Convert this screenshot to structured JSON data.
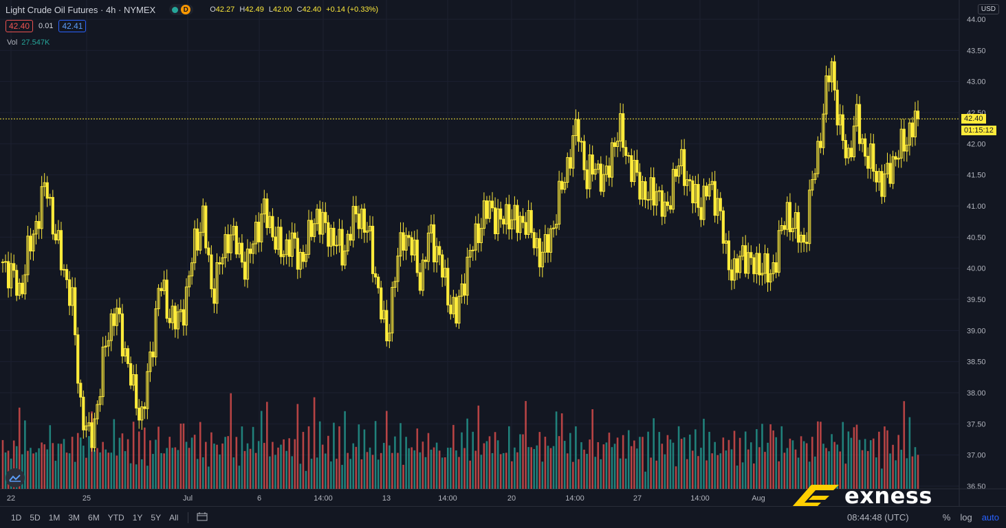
{
  "header": {
    "title": "Light Crude Oil Futures · 4h · NYMEX",
    "badge_d": "D",
    "ohlc": {
      "o_label": "O",
      "o": "42.27",
      "h_label": "H",
      "h": "42.49",
      "l_label": "L",
      "l": "42.00",
      "c_label": "C",
      "c": "42.40",
      "change": "+0.14 (+0.33%)"
    },
    "sell_price": "42.40",
    "spread": "0.01",
    "buy_price": "42.41",
    "volume_label": "Vol",
    "volume_value": "27.547K",
    "currency": "USD"
  },
  "last_price_tag": "42.40",
  "countdown_tag": "01:15:12",
  "toolbar": {
    "timeframes": [
      "1D",
      "5D",
      "1M",
      "3M",
      "6M",
      "YTD",
      "1Y",
      "5Y",
      "All"
    ],
    "clock": "08:44:48 (UTC)",
    "percent": "%",
    "log": "log",
    "auto": "auto"
  },
  "brand": {
    "name": "exness"
  },
  "colors": {
    "up": "#26a69a",
    "down": "#ef5350",
    "candle": "#ffeb3b",
    "background": "#131722"
  },
  "chart_data": {
    "type": "candlestick",
    "title": "Light Crude Oil Futures · 4h · NYMEX",
    "y_axis_ticks": [
      "44.00",
      "43.50",
      "43.00",
      "42.50",
      "42.00",
      "41.50",
      "41.00",
      "40.50",
      "40.00",
      "39.50",
      "39.00",
      "38.50",
      "38.00",
      "37.50",
      "37.00",
      "36.50"
    ],
    "ylim": [
      36.5,
      44.0
    ],
    "x_axis_ticks": [
      "22",
      "25",
      "Jul",
      "6",
      "14:00",
      "13",
      "14:00",
      "20",
      "14:00",
      "27",
      "14:00",
      "Aug"
    ],
    "last_price": 42.4,
    "path": [
      40.1,
      39.9,
      39.6,
      40.3,
      40.8,
      41.4,
      40.5,
      40.0,
      39.4,
      37.7,
      37.2,
      37.9,
      39.0,
      39.3,
      38.7,
      38.0,
      37.6,
      38.6,
      39.8,
      39.3,
      39.1,
      39.5,
      40.4,
      40.8,
      39.6,
      40.1,
      40.6,
      40.3,
      40.0,
      40.6,
      40.9,
      40.6,
      40.2,
      40.5,
      40.1,
      40.4,
      40.9,
      40.6,
      40.5,
      40.2,
      40.7,
      40.9,
      40.5,
      39.7,
      38.8,
      39.9,
      40.6,
      40.3,
      39.8,
      40.6,
      40.2,
      39.6,
      39.2,
      39.9,
      40.4,
      40.8,
      41.0,
      40.7,
      40.9,
      40.7,
      40.8,
      40.4,
      40.2,
      40.6,
      41.2,
      41.8,
      42.3,
      41.4,
      41.7,
      41.3,
      42.0,
      42.2,
      41.6,
      41.4,
      41.1,
      41.3,
      40.8,
      41.5,
      41.7,
      41.2,
      41.0,
      41.3,
      41.1,
      40.2,
      39.9,
      40.3,
      40.0,
      40.1,
      39.8,
      40.4,
      40.9,
      40.6,
      40.4,
      41.5,
      42.3,
      43.4,
      42.2,
      41.8,
      42.4,
      41.8,
      41.6,
      41.3,
      41.7,
      41.9,
      42.2,
      42.4
    ],
    "volume": [
      {
        "v": 0.85,
        "dir": "down"
      },
      {
        "v": 0.35,
        "dir": "up"
      },
      {
        "v": 0.55,
        "dir": "down"
      },
      {
        "v": 0.3,
        "dir": "up"
      },
      {
        "v": 0.6,
        "dir": "down"
      },
      {
        "v": 0.45,
        "dir": "up"
      },
      {
        "v": 0.9,
        "dir": "down"
      },
      {
        "v": 0.4,
        "dir": "up"
      },
      {
        "v": 0.7,
        "dir": "up"
      },
      {
        "v": 0.5,
        "dir": "down"
      },
      {
        "v": 0.4,
        "dir": "up"
      },
      {
        "v": 0.55,
        "dir": "down"
      },
      {
        "v": 0.35,
        "dir": "up"
      },
      {
        "v": 0.65,
        "dir": "up"
      },
      {
        "v": 0.45,
        "dir": "down"
      },
      {
        "v": 0.6,
        "dir": "down"
      },
      {
        "v": 0.4,
        "dir": "up"
      },
      {
        "v": 0.75,
        "dir": "up"
      },
      {
        "v": 0.5,
        "dir": "down"
      },
      {
        "v": 0.3,
        "dir": "up"
      },
      {
        "v": 0.55,
        "dir": "up"
      },
      {
        "v": 0.45,
        "dir": "down"
      },
      {
        "v": 0.7,
        "dir": "up"
      },
      {
        "v": 0.35,
        "dir": "down"
      },
      {
        "v": 0.6,
        "dir": "up"
      },
      {
        "v": 0.5,
        "dir": "down"
      },
      {
        "v": 0.4,
        "dir": "up"
      },
      {
        "v": 0.55,
        "dir": "down"
      },
      {
        "v": 0.65,
        "dir": "up"
      },
      {
        "v": 0.45,
        "dir": "up"
      },
      {
        "v": 0.35,
        "dir": "down"
      },
      {
        "v": 0.6,
        "dir": "up"
      },
      {
        "v": 0.8,
        "dir": "down"
      },
      {
        "v": 0.5,
        "dir": "up"
      },
      {
        "v": 0.4,
        "dir": "down"
      },
      {
        "v": 0.55,
        "dir": "up"
      },
      {
        "v": 0.45,
        "dir": "down"
      },
      {
        "v": 0.65,
        "dir": "up"
      },
      {
        "v": 0.35,
        "dir": "down"
      },
      {
        "v": 0.5,
        "dir": "up"
      },
      {
        "v": 0.7,
        "dir": "up"
      },
      {
        "v": 0.4,
        "dir": "down"
      },
      {
        "v": 0.55,
        "dir": "up"
      },
      {
        "v": 0.6,
        "dir": "down"
      },
      {
        "v": 0.45,
        "dir": "up"
      },
      {
        "v": 0.5,
        "dir": "down"
      },
      {
        "v": 0.35,
        "dir": "up"
      },
      {
        "v": 0.65,
        "dir": "down"
      },
      {
        "v": 0.4,
        "dir": "up"
      },
      {
        "v": 0.55,
        "dir": "down"
      },
      {
        "v": 0.45,
        "dir": "up"
      },
      {
        "v": 0.6,
        "dir": "down"
      },
      {
        "v": 0.3,
        "dir": "up"
      },
      {
        "v": 0.5,
        "dir": "down"
      },
      {
        "v": 0.4,
        "dir": "up"
      },
      {
        "v": 0.55,
        "dir": "up"
      },
      {
        "v": 0.65,
        "dir": "down"
      },
      {
        "v": 0.45,
        "dir": "up"
      },
      {
        "v": 0.35,
        "dir": "down"
      },
      {
        "v": 0.6,
        "dir": "up"
      },
      {
        "v": 0.5,
        "dir": "down"
      },
      {
        "v": 0.7,
        "dir": "up"
      },
      {
        "v": 0.4,
        "dir": "down"
      },
      {
        "v": 0.55,
        "dir": "up"
      },
      {
        "v": 0.65,
        "dir": "down"
      },
      {
        "v": 0.8,
        "dir": "down"
      },
      {
        "v": 0.5,
        "dir": "up"
      },
      {
        "v": 0.45,
        "dir": "down"
      },
      {
        "v": 0.6,
        "dir": "up"
      },
      {
        "v": 0.55,
        "dir": "down"
      },
      {
        "v": 0.4,
        "dir": "up"
      },
      {
        "v": 0.65,
        "dir": "down"
      },
      {
        "v": 0.5,
        "dir": "up"
      },
      {
        "v": 0.45,
        "dir": "down"
      },
      {
        "v": 0.35,
        "dir": "up"
      },
      {
        "v": 0.55,
        "dir": "down"
      },
      {
        "v": 0.6,
        "dir": "up"
      },
      {
        "v": 0.45,
        "dir": "down"
      },
      {
        "v": 0.4,
        "dir": "up"
      },
      {
        "v": 0.5,
        "dir": "down"
      },
      {
        "v": 0.55,
        "dir": "up"
      },
      {
        "v": 0.65,
        "dir": "down"
      },
      {
        "v": 0.95,
        "dir": "down"
      },
      {
        "v": 0.45,
        "dir": "up"
      },
      {
        "v": 0.5,
        "dir": "down"
      },
      {
        "v": 0.4,
        "dir": "up"
      },
      {
        "v": 0.6,
        "dir": "up"
      },
      {
        "v": 0.55,
        "dir": "down"
      },
      {
        "v": 0.45,
        "dir": "up"
      },
      {
        "v": 0.5,
        "dir": "down"
      },
      {
        "v": 0.65,
        "dir": "up"
      },
      {
        "v": 0.4,
        "dir": "down"
      },
      {
        "v": 0.55,
        "dir": "up"
      },
      {
        "v": 0.8,
        "dir": "up"
      },
      {
        "v": 0.6,
        "dir": "down"
      },
      {
        "v": 0.85,
        "dir": "down"
      },
      {
        "v": 0.5,
        "dir": "up"
      },
      {
        "v": 0.45,
        "dir": "down"
      },
      {
        "v": 0.55,
        "dir": "up"
      },
      {
        "v": 0.4,
        "dir": "down"
      },
      {
        "v": 0.6,
        "dir": "up"
      },
      {
        "v": 0.5,
        "dir": "down"
      },
      {
        "v": 0.45,
        "dir": "up"
      },
      {
        "v": 0.55,
        "dir": "down"
      },
      {
        "v": 0.35,
        "dir": "up"
      },
      {
        "v": 0.6,
        "dir": "down"
      }
    ]
  }
}
